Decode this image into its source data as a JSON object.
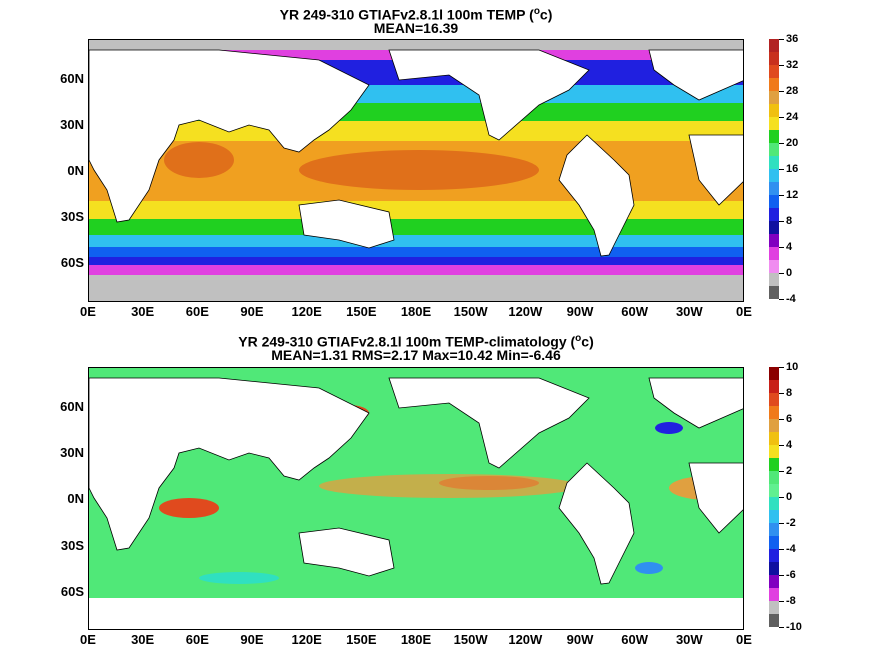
{
  "panels": [
    {
      "title_pre": "YR 249-310 GTIAFv2.8.1l 100m TEMP (",
      "title_sup": "o",
      "title_post": "c)",
      "subtitle": "MEAN=16.39",
      "colorbar_labels": [
        "36",
        "32",
        "28",
        "24",
        "20",
        "16",
        "12",
        "8",
        "4",
        "0",
        "-4"
      ],
      "colorbar_colors": [
        "#b22222",
        "#c8301e",
        "#e04a1e",
        "#f07a1a",
        "#e0a040",
        "#f0c010",
        "#f5e020",
        "#20d020",
        "#50e878",
        "#30e0c0",
        "#30c0f0",
        "#3090f0",
        "#1060f0",
        "#2020e0",
        "#1010a0",
        "#8000c0",
        "#e040e0",
        "#f08cf0",
        "#c0c0c0",
        "#606060"
      ]
    },
    {
      "title_pre": "YR 249-310 GTIAFv2.8.1l 100m TEMP-climatology (",
      "title_sup": "o",
      "title_post": "c)",
      "subtitle": "MEAN=1.31   RMS=2.17   Max=10.42   Min=-6.46",
      "colorbar_labels": [
        "10",
        "8",
        "6",
        "4",
        "2",
        "0",
        "-2",
        "-4",
        "-6",
        "-8",
        "-10"
      ],
      "colorbar_colors": [
        "#8b0000",
        "#c82018",
        "#e04a1e",
        "#f07a1a",
        "#e0a040",
        "#f0c010",
        "#f5e020",
        "#20d020",
        "#50e878",
        "#60f090",
        "#30e0c0",
        "#30c0f0",
        "#3090f0",
        "#1060f0",
        "#2020e0",
        "#1010a0",
        "#8000c0",
        "#e040e0",
        "#c0c0c0",
        "#606060"
      ]
    }
  ],
  "lat_labels": [
    "60N",
    "30N",
    "0N",
    "30S",
    "60S"
  ],
  "lon_labels": [
    "0E",
    "30E",
    "60E",
    "90E",
    "120E",
    "150E",
    "180E",
    "150W",
    "120W",
    "90W",
    "60W",
    "30W",
    "0E"
  ]
}
